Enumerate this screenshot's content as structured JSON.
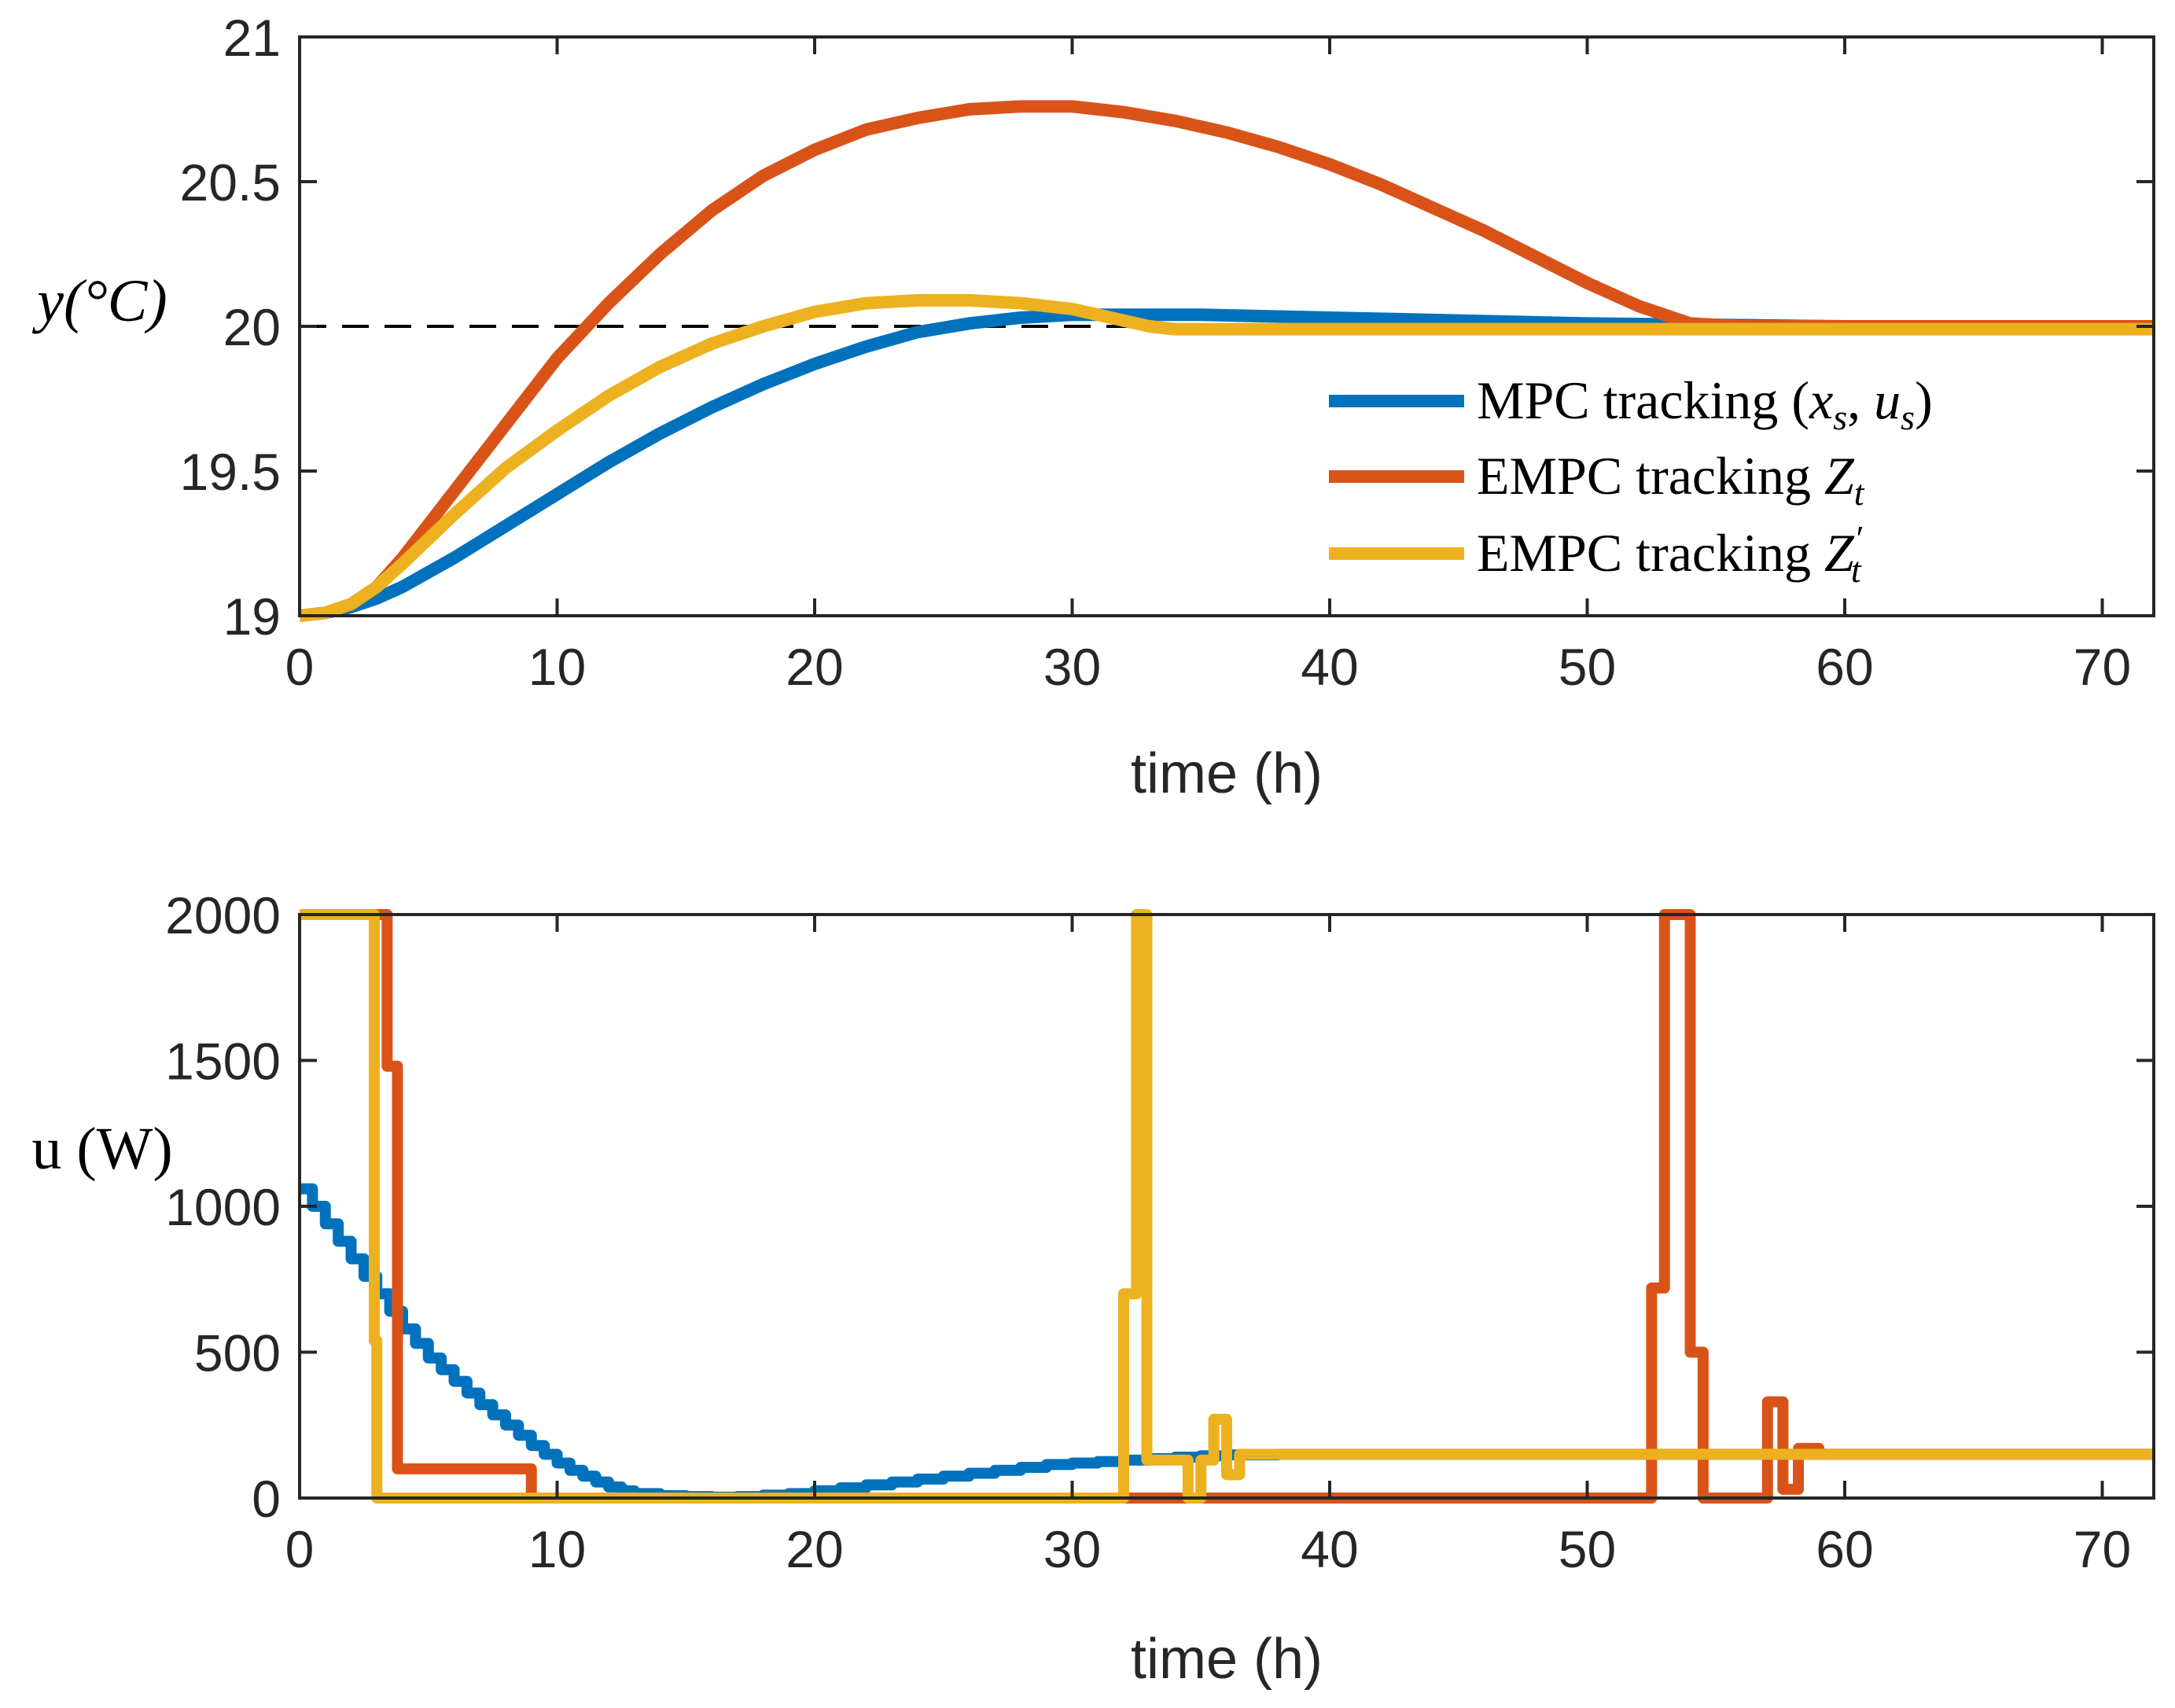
{
  "chart_data": [
    {
      "type": "line",
      "xlabel": "time (h)",
      "ylabel": "y(°C)",
      "xlim": [
        0,
        72
      ],
      "ylim": [
        19,
        21
      ],
      "xticks": [
        0,
        10,
        20,
        30,
        40,
        50,
        60,
        70
      ],
      "yticks": [
        19,
        19.5,
        20,
        20.5,
        21
      ],
      "legend_position": "bottom-right",
      "reference_line": {
        "y": 20,
        "style": "dashed",
        "color": "#000000"
      },
      "series": [
        {
          "name": "MPC tracking (x_s, u_s)",
          "color": "#0072BD",
          "x": [
            0,
            1,
            2,
            3,
            4,
            6,
            8,
            10,
            12,
            14,
            16,
            18,
            20,
            22,
            24,
            26,
            28,
            30,
            32,
            35,
            40,
            45,
            50,
            55,
            60,
            72
          ],
          "y": [
            19.0,
            19.01,
            19.03,
            19.06,
            19.1,
            19.2,
            19.31,
            19.42,
            19.53,
            19.63,
            19.72,
            19.8,
            19.87,
            19.93,
            19.98,
            20.01,
            20.03,
            20.04,
            20.04,
            20.04,
            20.03,
            20.02,
            20.01,
            20.005,
            20.0,
            20.0
          ]
        },
        {
          "name": "EMPC tracking Z_t",
          "color": "#D95319",
          "x": [
            0,
            1,
            2,
            3,
            4,
            6,
            8,
            10,
            12,
            14,
            16,
            18,
            20,
            22,
            24,
            26,
            28,
            30,
            32,
            34,
            36,
            38,
            40,
            42,
            44,
            46,
            48,
            50,
            52,
            54,
            56,
            60,
            72
          ],
          "y": [
            19.0,
            19.01,
            19.04,
            19.1,
            19.2,
            19.43,
            19.66,
            19.89,
            20.08,
            20.25,
            20.4,
            20.52,
            20.61,
            20.68,
            20.72,
            20.75,
            20.76,
            20.76,
            20.74,
            20.71,
            20.67,
            20.62,
            20.56,
            20.49,
            20.41,
            20.33,
            20.24,
            20.15,
            20.07,
            20.01,
            20.0,
            20.0,
            20.0
          ]
        },
        {
          "name": "EMPC tracking Z_t'",
          "color": "#EDB120",
          "x": [
            0,
            1,
            2,
            3,
            4,
            6,
            8,
            10,
            12,
            14,
            16,
            18,
            20,
            22,
            24,
            26,
            28,
            30,
            31,
            32,
            33,
            34,
            36,
            40,
            50,
            72
          ],
          "y": [
            19.0,
            19.01,
            19.04,
            19.1,
            19.18,
            19.35,
            19.51,
            19.64,
            19.76,
            19.86,
            19.94,
            20.0,
            20.05,
            20.08,
            20.09,
            20.09,
            20.08,
            20.06,
            20.04,
            20.02,
            20.0,
            19.99,
            19.99,
            19.99,
            19.99,
            19.99
          ]
        }
      ]
    },
    {
      "type": "line",
      "step": true,
      "xlabel": "time (h)",
      "ylabel": "u (W)",
      "xlim": [
        0,
        72
      ],
      "ylim": [
        0,
        2000
      ],
      "xticks": [
        0,
        10,
        20,
        30,
        40,
        50,
        60,
        70
      ],
      "yticks": [
        0,
        500,
        1000,
        1500,
        2000
      ],
      "series": [
        {
          "name": "MPC tracking (x_s, u_s)",
          "color": "#0072BD",
          "x": [
            0,
            0.5,
            1,
            1.5,
            2,
            2.5,
            3,
            3.5,
            4,
            4.5,
            5,
            5.5,
            6,
            6.5,
            7,
            7.5,
            8,
            8.5,
            9,
            9.5,
            10,
            10.5,
            11,
            11.5,
            12,
            12.5,
            13,
            14,
            15,
            16,
            17,
            18,
            19,
            20,
            21,
            22,
            23,
            24,
            25,
            26,
            27,
            28,
            29,
            30,
            31,
            32,
            33,
            34,
            35,
            36,
            38,
            40,
            45,
            50,
            55,
            60,
            72
          ],
          "y": [
            1060,
            1000,
            940,
            880,
            820,
            760,
            700,
            640,
            580,
            530,
            480,
            440,
            400,
            360,
            320,
            285,
            250,
            215,
            180,
            150,
            120,
            95,
            75,
            55,
            38,
            25,
            15,
            8,
            5,
            3,
            5,
            10,
            15,
            25,
            35,
            45,
            55,
            65,
            75,
            85,
            95,
            105,
            115,
            120,
            125,
            130,
            135,
            140,
            145,
            148,
            150,
            150,
            150,
            150,
            150,
            150,
            150
          ]
        },
        {
          "name": "EMPC tracking Z_t",
          "color": "#D95319",
          "x": [
            0,
            2.9,
            3.4,
            3.8,
            9.0,
            31.5,
            52.5,
            53.0,
            54.0,
            54.5,
            57.0,
            57.6,
            58.2,
            59.0,
            72
          ],
          "y": [
            2000,
            2000,
            1480,
            100,
            0,
            0,
            720,
            2000,
            500,
            0,
            330,
            30,
            170,
            150,
            150
          ]
        },
        {
          "name": "EMPC tracking Z_t'",
          "color": "#EDB120",
          "x": [
            0,
            2.5,
            2.9,
            3.0,
            31.5,
            32.0,
            32.5,
            32.9,
            34.5,
            35.0,
            35.5,
            36.0,
            36.5,
            72
          ],
          "y": [
            2000,
            2000,
            540,
            0,
            0,
            700,
            2000,
            130,
            0,
            130,
            270,
            80,
            150,
            150
          ]
        }
      ]
    }
  ]
}
